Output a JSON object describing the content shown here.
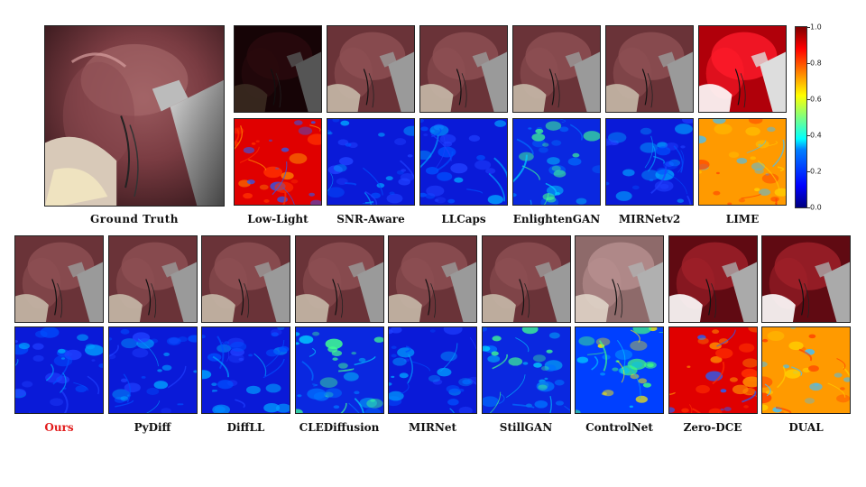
{
  "ground_truth_label": "Ground Truth",
  "top_methods": [
    "Low-Light",
    "SNR-Aware",
    "LLCaps",
    "EnlightenGAN",
    "MIRNetv2",
    "LIME"
  ],
  "bottom_methods": [
    "Ours",
    "PyDiff",
    "DiffLL",
    "CLEDiffusion",
    "MIRNet",
    "StillGAN",
    "ControlNet",
    "Zero-DCE",
    "DUAL"
  ],
  "highlight_method": "Ours",
  "colorbar": {
    "min": 0.0,
    "max": 1.0,
    "ticks": [
      "1.0",
      "0.8",
      "0.6",
      "0.4",
      "0.2",
      "0.0"
    ]
  },
  "colors": {
    "highlight": "#e21c1c",
    "cold": "#0010c8",
    "hot": "#e00000"
  }
}
